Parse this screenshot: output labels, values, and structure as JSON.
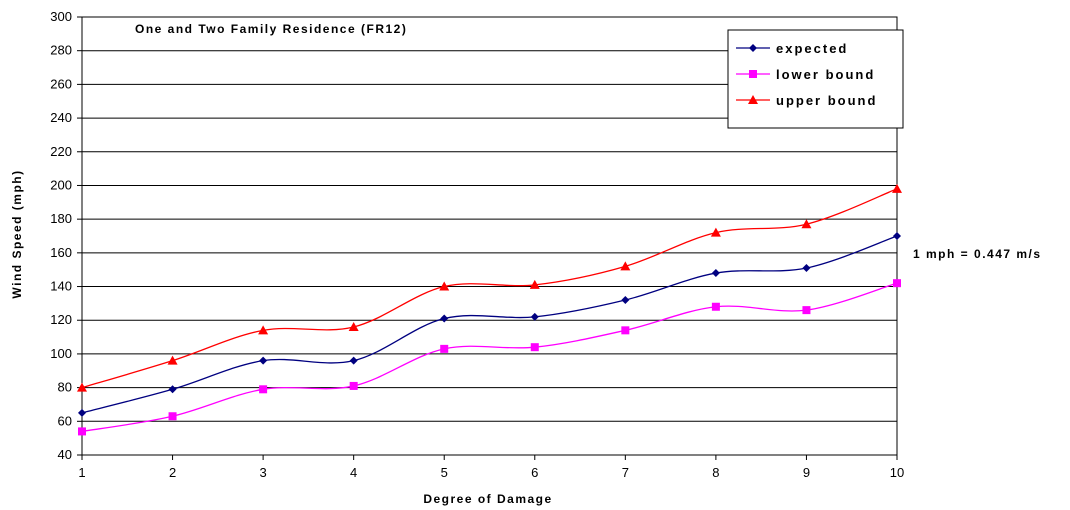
{
  "chart_data": {
    "type": "line",
    "title": "One and Two Family Residence (FR12)",
    "xlabel": "Degree of Damage",
    "ylabel": "Wind Speed (mph)",
    "x": [
      1,
      2,
      3,
      4,
      5,
      6,
      7,
      8,
      9,
      10
    ],
    "xlim": [
      1,
      10
    ],
    "ylim": [
      40,
      300
    ],
    "yticks": [
      40,
      60,
      80,
      100,
      120,
      140,
      160,
      180,
      200,
      220,
      240,
      260,
      280,
      300
    ],
    "grid": true,
    "legend_position": "top-right",
    "annotation": "1 mph = 0.447 m/s",
    "series": [
      {
        "name": "expected",
        "color": "#000080",
        "marker": "diamond",
        "values": [
          65,
          79,
          96,
          96,
          121,
          122,
          132,
          148,
          151,
          170
        ]
      },
      {
        "name": "lower bound",
        "color": "#ff00ff",
        "marker": "square",
        "values": [
          54,
          63,
          79,
          81,
          103,
          104,
          114,
          128,
          126,
          142
        ]
      },
      {
        "name": "upper bound",
        "color": "#ff0000",
        "marker": "triangle",
        "values": [
          80,
          96,
          114,
          116,
          140,
          141,
          152,
          172,
          177,
          198
        ]
      }
    ]
  }
}
